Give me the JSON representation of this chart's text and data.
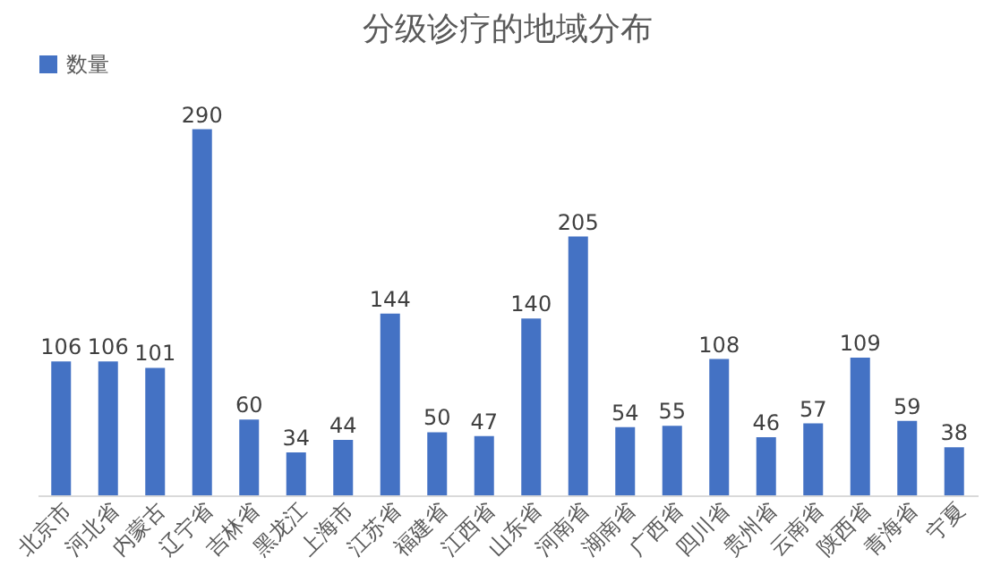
{
  "chart_data": {
    "type": "bar",
    "title": "分级诊疗的地域分布",
    "categories": [
      "北京市",
      "河北省",
      "内蒙古",
      "辽宁省",
      "吉林省",
      "黑龙江",
      "上海市",
      "江苏省",
      "福建省",
      "江西省",
      "山东省",
      "河南省",
      "湖南省",
      "广西省",
      "四川省",
      "贵州省",
      "云南省",
      "陕西省",
      "青海省",
      "宁夏"
    ],
    "series": [
      {
        "name": "数量",
        "color": "#4472c4",
        "values": [
          106,
          106,
          101,
          290,
          60,
          34,
          44,
          144,
          50,
          47,
          140,
          205,
          54,
          55,
          108,
          46,
          57,
          109,
          59,
          38
        ]
      }
    ],
    "data_labels": true,
    "legend": "top",
    "grid": false
  }
}
